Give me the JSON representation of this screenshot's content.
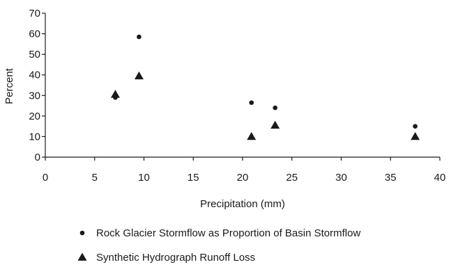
{
  "chart_data": {
    "type": "scatter",
    "title": "",
    "xlabel": "Precipitation (mm)",
    "ylabel": "Percent",
    "xlim": [
      0,
      40
    ],
    "ylim": [
      0,
      70
    ],
    "xticks": [
      "0",
      "5",
      "10",
      "15",
      "20",
      "25",
      "30",
      "35",
      "40"
    ],
    "yticks": [
      "0",
      "10",
      "20",
      "30",
      "40",
      "50",
      "60",
      "70"
    ],
    "grid": false,
    "legend_position": "bottom",
    "series": [
      {
        "name": "Rock Glacier Stormflow as Proportion of Basin Stormflow",
        "marker": "circle",
        "color": "#1a1a1a",
        "points": [
          [
            7.1,
            29
          ],
          [
            9.5,
            58.5
          ],
          [
            20.9,
            26.5
          ],
          [
            23.3,
            24
          ],
          [
            37.5,
            15
          ]
        ]
      },
      {
        "name": "Synthetic Hydrograph Runoff Loss",
        "marker": "triangle",
        "color": "#1a1a1a",
        "points": [
          [
            7.1,
            30.5
          ],
          [
            9.5,
            39.5
          ],
          [
            20.9,
            10
          ],
          [
            23.3,
            15.5
          ],
          [
            37.5,
            10
          ]
        ]
      }
    ]
  }
}
